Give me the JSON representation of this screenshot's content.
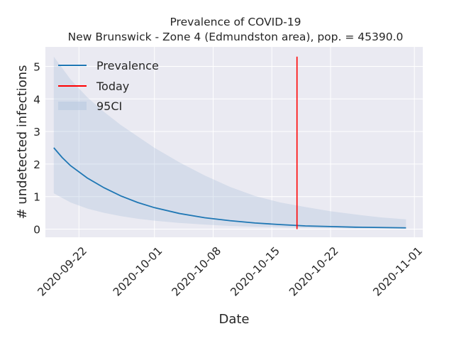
{
  "chart_data": {
    "type": "line",
    "title": "Prevalence of COVID-19",
    "subtitle": "New Brunswick - Zone 4 (Edmundston area), pop. = 45390.0",
    "xlabel": "Date",
    "ylabel": "# undetected infections",
    "xlim": [
      "2020-09-18",
      "2020-11-02"
    ],
    "ylim": [
      -0.25,
      5.6
    ],
    "x_ticks": [
      "2020-09-22",
      "2020-10-01",
      "2020-10-08",
      "2020-10-15",
      "2020-10-22",
      "2020-11-01"
    ],
    "y_ticks": [
      0,
      1,
      2,
      3,
      4,
      5
    ],
    "grid": true,
    "legend_position": "upper-left",
    "series": [
      {
        "name": "Prevalence",
        "color": "#1f77b4",
        "x": [
          "2020-09-19",
          "2020-09-20",
          "2020-09-21",
          "2020-09-23",
          "2020-09-25",
          "2020-09-27",
          "2020-09-29",
          "2020-10-01",
          "2020-10-04",
          "2020-10-07",
          "2020-10-10",
          "2020-10-13",
          "2020-10-16",
          "2020-10-19",
          "2020-10-22",
          "2020-10-25",
          "2020-10-28",
          "2020-10-31"
        ],
        "y": [
          2.5,
          2.2,
          1.95,
          1.57,
          1.27,
          1.02,
          0.82,
          0.66,
          0.48,
          0.35,
          0.26,
          0.19,
          0.14,
          0.1,
          0.08,
          0.06,
          0.05,
          0.04
        ]
      },
      {
        "name": "Today",
        "color": "#ff0000",
        "x": [
          "2020-10-18",
          "2020-10-18"
        ],
        "y": [
          0,
          5.3
        ]
      }
    ],
    "band": {
      "name": "95CI",
      "color": "#b0c4de",
      "x": [
        "2020-09-19",
        "2020-09-21",
        "2020-09-23",
        "2020-09-25",
        "2020-09-27",
        "2020-09-29",
        "2020-10-01",
        "2020-10-04",
        "2020-10-07",
        "2020-10-10",
        "2020-10-13",
        "2020-10-16",
        "2020-10-19",
        "2020-10-22",
        "2020-10-25",
        "2020-10-28",
        "2020-10-31"
      ],
      "lower": [
        1.1,
        0.82,
        0.63,
        0.5,
        0.4,
        0.32,
        0.26,
        0.19,
        0.14,
        0.1,
        0.075,
        0.055,
        0.04,
        0.03,
        0.022,
        0.016,
        0.012
      ],
      "upper": [
        5.3,
        4.6,
        4.05,
        3.6,
        3.2,
        2.85,
        2.5,
        2.05,
        1.65,
        1.3,
        1.02,
        0.82,
        0.68,
        0.55,
        0.45,
        0.36,
        0.3
      ]
    }
  }
}
